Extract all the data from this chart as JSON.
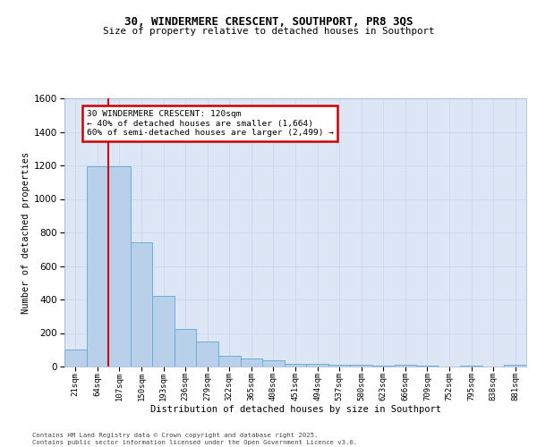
{
  "title_line1": "30, WINDERMERE CRESCENT, SOUTHPORT, PR8 3QS",
  "title_line2": "Size of property relative to detached houses in Southport",
  "xlabel": "Distribution of detached houses by size in Southport",
  "ylabel": "Number of detached properties",
  "categories": [
    "21sqm",
    "64sqm",
    "107sqm",
    "150sqm",
    "193sqm",
    "236sqm",
    "279sqm",
    "322sqm",
    "365sqm",
    "408sqm",
    "451sqm",
    "494sqm",
    "537sqm",
    "580sqm",
    "623sqm",
    "666sqm",
    "709sqm",
    "752sqm",
    "795sqm",
    "838sqm",
    "881sqm"
  ],
  "bar_heights": [
    100,
    1195,
    1195,
    740,
    420,
    225,
    150,
    65,
    50,
    35,
    15,
    15,
    10,
    10,
    5,
    10,
    5,
    0,
    5,
    0,
    10
  ],
  "bar_color": "#b8d0ea",
  "bar_edge_color": "#6baed6",
  "grid_color": "#c8d4e8",
  "bg_color": "#dce6f5",
  "vline_color": "#cc0000",
  "vline_x": 2,
  "annotation_text_line1": "30 WINDERMERE CRESCENT: 120sqm",
  "annotation_text_line2": "← 40% of detached houses are smaller (1,664)",
  "annotation_text_line3": "60% of semi-detached houses are larger (2,499) →",
  "annotation_box_color": "#cc0000",
  "ylim": [
    0,
    1600
  ],
  "yticks": [
    0,
    200,
    400,
    600,
    800,
    1000,
    1200,
    1400,
    1600
  ],
  "footer_line1": "Contains HM Land Registry data © Crown copyright and database right 2025.",
  "footer_line2": "Contains public sector information licensed under the Open Government Licence v3.0."
}
